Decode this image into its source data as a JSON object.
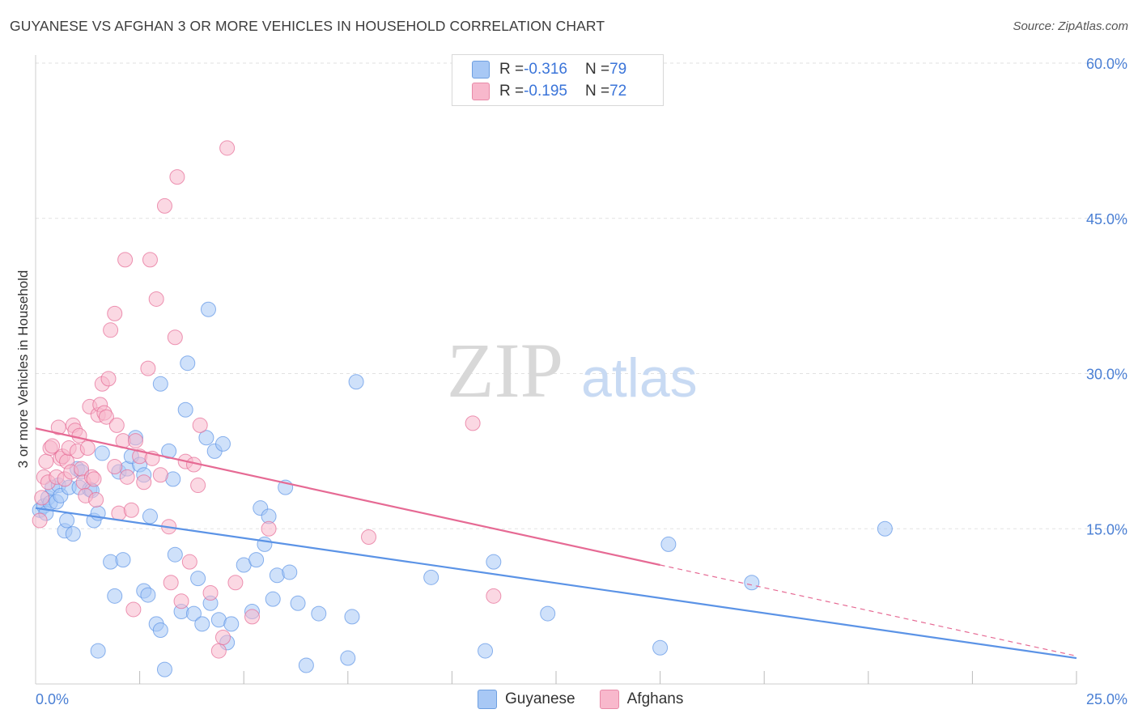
{
  "title": "GUYANESE VS AFGHAN 3 OR MORE VEHICLES IN HOUSEHOLD CORRELATION CHART",
  "source": "Source: ZipAtlas.com",
  "watermark": {
    "zip": "ZIP",
    "atlas": "atlas"
  },
  "legend": {
    "rows": [
      {
        "r_label": "R = ",
        "r_value": "-0.316",
        "n_label": "N = ",
        "n_value": "79",
        "color": "#a8c8f5"
      },
      {
        "r_label": "R = ",
        "r_value": "-0.195",
        "n_label": "N = ",
        "n_value": "72",
        "color": "#f8b8cc"
      }
    ]
  },
  "bottom_legend": [
    {
      "label": "Guyanese",
      "color": "#a8c8f5"
    },
    {
      "label": "Afghans",
      "color": "#f8b8cc"
    }
  ],
  "chart_data": {
    "type": "scatter",
    "title": "GUYANESE VS AFGHAN 3 OR MORE VEHICLES IN HOUSEHOLD CORRELATION CHART",
    "xlabel": "",
    "ylabel": "3 or more Vehicles in Household",
    "xlim": [
      0,
      25
    ],
    "ylim": [
      0,
      60
    ],
    "x_tick_labels": [
      "0.0%",
      "25.0%"
    ],
    "y_tick_labels": [
      "15.0%",
      "30.0%",
      "45.0%",
      "60.0%"
    ],
    "y_ticks": [
      15,
      30,
      45,
      60
    ],
    "grid": true,
    "series": [
      {
        "name": "Guyanese",
        "color": "#5b93e6",
        "fill": "#a8c8f5",
        "trend": {
          "x": [
            0,
            25
          ],
          "y": [
            17.0,
            2.5
          ]
        },
        "points": [
          [
            0.1,
            16.8
          ],
          [
            0.2,
            17.2
          ],
          [
            0.25,
            16.5
          ],
          [
            0.3,
            18.0
          ],
          [
            0.35,
            17.5
          ],
          [
            0.4,
            19.0
          ],
          [
            0.5,
            17.6
          ],
          [
            0.55,
            19.2
          ],
          [
            0.6,
            18.2
          ],
          [
            0.7,
            14.8
          ],
          [
            0.75,
            15.8
          ],
          [
            0.8,
            19.0
          ],
          [
            0.9,
            14.5
          ],
          [
            1.0,
            20.8
          ],
          [
            1.05,
            19.0
          ],
          [
            1.1,
            20.5
          ],
          [
            1.3,
            18.8
          ],
          [
            1.35,
            18.7
          ],
          [
            1.4,
            15.8
          ],
          [
            1.5,
            16.5
          ],
          [
            1.6,
            22.3
          ],
          [
            1.8,
            11.8
          ],
          [
            1.9,
            8.5
          ],
          [
            2.0,
            20.5
          ],
          [
            2.1,
            12.0
          ],
          [
            2.2,
            20.8
          ],
          [
            2.3,
            22.0
          ],
          [
            2.4,
            23.8
          ],
          [
            2.5,
            21.2
          ],
          [
            2.6,
            20.2
          ],
          [
            2.6,
            9.0
          ],
          [
            2.7,
            8.6
          ],
          [
            2.75,
            16.2
          ],
          [
            2.9,
            5.8
          ],
          [
            3.0,
            5.2
          ],
          [
            3.0,
            29.0
          ],
          [
            3.1,
            1.4
          ],
          [
            3.2,
            22.5
          ],
          [
            3.3,
            19.8
          ],
          [
            3.35,
            12.5
          ],
          [
            3.5,
            7.0
          ],
          [
            3.6,
            26.5
          ],
          [
            3.65,
            31.0
          ],
          [
            3.8,
            6.8
          ],
          [
            3.9,
            10.2
          ],
          [
            4.0,
            5.8
          ],
          [
            4.1,
            23.8
          ],
          [
            4.15,
            36.2
          ],
          [
            4.2,
            7.8
          ],
          [
            4.3,
            22.5
          ],
          [
            4.4,
            6.2
          ],
          [
            4.5,
            23.2
          ],
          [
            4.6,
            4.0
          ],
          [
            4.7,
            5.8
          ],
          [
            5.0,
            11.5
          ],
          [
            5.2,
            7.0
          ],
          [
            5.3,
            12.0
          ],
          [
            5.4,
            17.0
          ],
          [
            5.5,
            13.5
          ],
          [
            5.6,
            16.2
          ],
          [
            5.7,
            8.2
          ],
          [
            5.8,
            10.5
          ],
          [
            6.0,
            19.0
          ],
          [
            6.1,
            10.8
          ],
          [
            6.3,
            7.8
          ],
          [
            6.5,
            1.8
          ],
          [
            6.8,
            6.8
          ],
          [
            7.5,
            2.5
          ],
          [
            7.6,
            6.5
          ],
          [
            7.7,
            29.2
          ],
          [
            9.5,
            10.3
          ],
          [
            10.8,
            3.2
          ],
          [
            11.0,
            11.8
          ],
          [
            12.3,
            6.8
          ],
          [
            15.0,
            3.5
          ],
          [
            15.2,
            13.5
          ],
          [
            17.2,
            9.8
          ],
          [
            20.4,
            15.0
          ],
          [
            1.5,
            3.2
          ]
        ]
      },
      {
        "name": "Afghans",
        "color": "#e66a94",
        "fill": "#f8b8cc",
        "trend": {
          "x": [
            0,
            15
          ],
          "y": [
            24.7,
            11.5
          ]
        },
        "trend_dashed": {
          "x": [
            15,
            25
          ],
          "y": [
            11.5,
            2.7
          ]
        },
        "points": [
          [
            0.1,
            15.8
          ],
          [
            0.15,
            18.0
          ],
          [
            0.2,
            20.0
          ],
          [
            0.25,
            21.5
          ],
          [
            0.3,
            19.5
          ],
          [
            0.35,
            22.8
          ],
          [
            0.4,
            23.0
          ],
          [
            0.5,
            20.0
          ],
          [
            0.55,
            24.8
          ],
          [
            0.6,
            21.8
          ],
          [
            0.65,
            22.0
          ],
          [
            0.7,
            19.8
          ],
          [
            0.75,
            21.5
          ],
          [
            0.8,
            22.8
          ],
          [
            0.85,
            20.5
          ],
          [
            0.9,
            25.0
          ],
          [
            0.95,
            24.5
          ],
          [
            1.0,
            22.5
          ],
          [
            1.05,
            24.0
          ],
          [
            1.1,
            20.8
          ],
          [
            1.15,
            19.5
          ],
          [
            1.2,
            18.2
          ],
          [
            1.25,
            22.8
          ],
          [
            1.3,
            26.8
          ],
          [
            1.35,
            20.0
          ],
          [
            1.4,
            19.8
          ],
          [
            1.45,
            17.8
          ],
          [
            1.5,
            26.0
          ],
          [
            1.55,
            27.0
          ],
          [
            1.6,
            29.0
          ],
          [
            1.65,
            26.2
          ],
          [
            1.7,
            25.8
          ],
          [
            1.75,
            29.5
          ],
          [
            1.8,
            34.2
          ],
          [
            1.9,
            21.0
          ],
          [
            1.95,
            25.0
          ],
          [
            2.0,
            16.5
          ],
          [
            2.1,
            23.5
          ],
          [
            2.15,
            41.0
          ],
          [
            2.2,
            20.0
          ],
          [
            2.3,
            16.8
          ],
          [
            2.35,
            7.2
          ],
          [
            2.4,
            23.5
          ],
          [
            2.5,
            22.0
          ],
          [
            2.6,
            19.5
          ],
          [
            2.7,
            30.5
          ],
          [
            2.75,
            41.0
          ],
          [
            2.8,
            21.8
          ],
          [
            2.9,
            37.2
          ],
          [
            3.0,
            20.2
          ],
          [
            3.1,
            46.2
          ],
          [
            3.2,
            15.2
          ],
          [
            3.25,
            9.8
          ],
          [
            3.35,
            33.5
          ],
          [
            3.4,
            49.0
          ],
          [
            3.5,
            8.0
          ],
          [
            3.6,
            21.5
          ],
          [
            3.7,
            11.8
          ],
          [
            3.8,
            21.2
          ],
          [
            3.9,
            19.2
          ],
          [
            3.95,
            25.0
          ],
          [
            4.2,
            8.8
          ],
          [
            4.4,
            3.2
          ],
          [
            4.5,
            4.5
          ],
          [
            4.6,
            51.8
          ],
          [
            4.8,
            9.8
          ],
          [
            5.2,
            6.5
          ],
          [
            5.6,
            15.0
          ],
          [
            8.0,
            14.2
          ],
          [
            10.5,
            25.2
          ],
          [
            11.0,
            8.5
          ],
          [
            1.9,
            35.8
          ]
        ]
      }
    ]
  }
}
